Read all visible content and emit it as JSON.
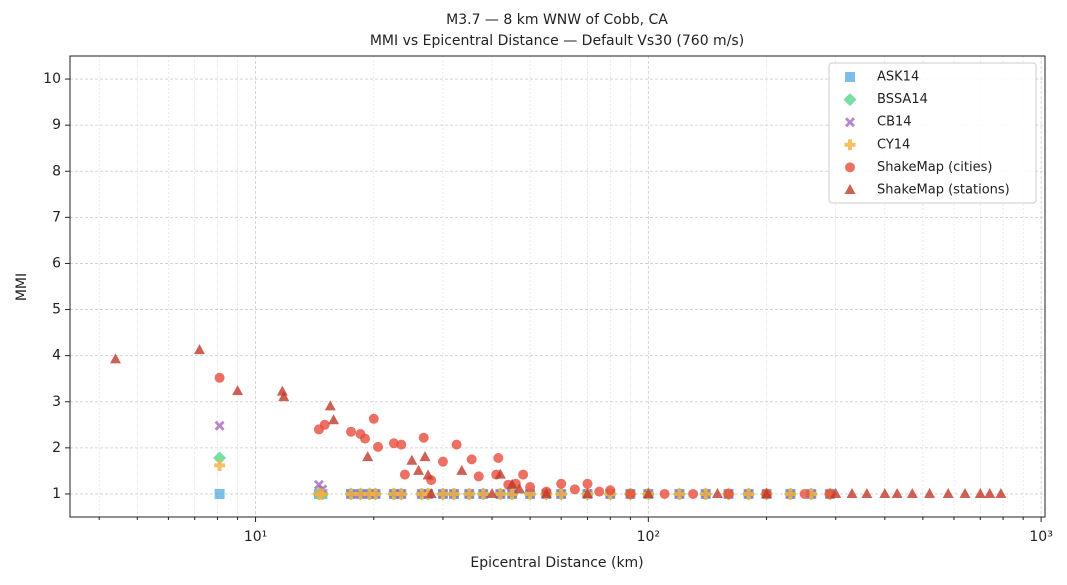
{
  "chart_data": {
    "type": "scatter",
    "title": "M3.7 — 8 km WNW of Cobb, CA",
    "subtitle": "MMI vs Epicentral Distance — Default Vs30 (760 m/s)",
    "x_label": "Epicentral Distance (km)",
    "y_label": "MMI",
    "xscale": "log",
    "grid": true,
    "legend": "upper right",
    "xlim": [
      3.37,
      1023
    ],
    "ylim": [
      0.5,
      10.5
    ],
    "xticks": [
      {
        "value": 10,
        "label": "10¹"
      },
      {
        "value": 100,
        "label": "10²"
      },
      {
        "value": 1000,
        "label": "10³"
      }
    ],
    "xminorticks": [
      4,
      5,
      6,
      7,
      8,
      9,
      20,
      30,
      40,
      50,
      60,
      70,
      80,
      90,
      200,
      300,
      400,
      500,
      600,
      700,
      800,
      900
    ],
    "yticks": [
      1,
      2,
      3,
      4,
      5,
      6,
      7,
      8,
      9,
      10
    ],
    "series": [
      {
        "name": "ASK14",
        "color": "#5dade2",
        "marker": "square",
        "x": [
          8.1,
          14.5,
          14.8,
          17.5,
          18.5,
          19.5,
          20.2,
          22.5,
          23.5,
          26.5,
          27.5,
          30,
          32,
          35,
          38,
          42,
          45,
          50,
          55,
          60,
          70,
          80,
          90,
          100,
          120,
          140,
          160,
          180,
          200,
          230,
          260,
          290
        ],
        "values": [
          1,
          1,
          1,
          1,
          1,
          1,
          1,
          1,
          1,
          1,
          1,
          1,
          1,
          1,
          1,
          1,
          1,
          1,
          1,
          1,
          1,
          1,
          1,
          1,
          1,
          1,
          1,
          1,
          1,
          1,
          1,
          1
        ]
      },
      {
        "name": "BSSA14",
        "color": "#58d68d",
        "marker": "diamond",
        "x": [
          8.1,
          14.5,
          14.8,
          17.5,
          18.5,
          19.5,
          20.2,
          22.5,
          23.5,
          26.5,
          27.5,
          30,
          32,
          35,
          38,
          42,
          45,
          50,
          55,
          60,
          70,
          80,
          90,
          100,
          120,
          140,
          160,
          180,
          200,
          230,
          260,
          290
        ],
        "values": [
          1.78,
          1,
          1,
          1,
          1,
          1,
          1,
          1,
          1,
          1,
          1,
          1,
          1,
          1,
          1,
          1,
          1,
          1,
          1,
          1,
          1,
          1,
          1,
          1,
          1,
          1,
          1,
          1,
          1,
          1,
          1,
          1
        ]
      },
      {
        "name": "CB14",
        "color": "#a569bd",
        "marker": "x",
        "x": [
          8.1,
          14.5,
          14.8,
          17.5,
          18.5,
          19.5,
          20.2,
          22.5,
          23.5,
          26.5,
          27.5,
          30,
          32,
          35,
          38,
          42,
          45,
          50,
          55,
          60,
          70,
          80,
          90,
          100,
          120,
          140,
          160,
          180,
          200,
          230,
          260,
          290
        ],
        "values": [
          2.48,
          1.2,
          1.1,
          1,
          1,
          1,
          1,
          1,
          1,
          1,
          1,
          1,
          1,
          1,
          1,
          1,
          1,
          1,
          1,
          1,
          1,
          1,
          1,
          1,
          1,
          1,
          1,
          1,
          1,
          1,
          1,
          1
        ]
      },
      {
        "name": "CY14",
        "color": "#f5b041",
        "marker": "plus",
        "x": [
          8.1,
          14.5,
          14.8,
          17.5,
          18.5,
          19.5,
          20.2,
          22.5,
          23.5,
          26.5,
          27.5,
          30,
          32,
          35,
          38,
          42,
          45,
          50,
          55,
          60,
          70,
          80,
          90,
          100,
          120,
          140,
          160,
          180,
          200,
          230,
          260,
          290
        ],
        "values": [
          1.62,
          1,
          1,
          1,
          1,
          1,
          1,
          1,
          1,
          1,
          1,
          1,
          1,
          1,
          1,
          1,
          1,
          1,
          1,
          1,
          1,
          1,
          1,
          1,
          1,
          1,
          1,
          1,
          1,
          1,
          1,
          1
        ]
      },
      {
        "name": "ShakeMap (cities)",
        "color": "#e74c3c",
        "marker": "circle",
        "x": [
          8.1,
          14.5,
          15,
          17.5,
          18.5,
          19,
          20,
          20.5,
          22.5,
          23.5,
          24,
          26.8,
          28,
          30,
          32.5,
          35.5,
          37,
          41.5,
          41,
          44,
          46,
          48,
          50,
          55,
          60,
          65,
          70,
          75,
          80,
          90,
          110,
          130,
          160,
          200,
          250,
          290
        ],
        "values": [
          3.52,
          2.4,
          2.5,
          2.35,
          2.3,
          2.2,
          2.63,
          2.02,
          2.1,
          2.07,
          1.42,
          2.22,
          1.3,
          1.7,
          2.07,
          1.75,
          1.38,
          1.78,
          1.42,
          1.2,
          1.22,
          1.42,
          1.15,
          1.05,
          1.22,
          1.1,
          1.22,
          1.05,
          1.08,
          1,
          1,
          1,
          1,
          1,
          1,
          1
        ]
      },
      {
        "name": "ShakeMap (stations)",
        "color": "#c0392b",
        "marker": "triangle",
        "x": [
          4.4,
          7.2,
          9,
          11.7,
          11.8,
          15.5,
          15.8,
          19.3,
          25,
          26,
          27,
          27.5,
          28,
          33.5,
          40,
          42,
          45,
          47,
          55,
          70,
          100,
          150,
          200,
          300,
          330,
          360,
          400,
          430,
          470,
          520,
          580,
          640,
          700,
          740,
          790
        ],
        "values": [
          3.92,
          4.12,
          3.23,
          3.22,
          3.1,
          2.9,
          2.6,
          1.8,
          1.72,
          1.5,
          1.8,
          1.4,
          1,
          1.5,
          1,
          1.42,
          1.2,
          1.1,
          1,
          1,
          1,
          1,
          1,
          1,
          1,
          1,
          1,
          1,
          1,
          1,
          1,
          1,
          1,
          1,
          1
        ]
      }
    ]
  }
}
